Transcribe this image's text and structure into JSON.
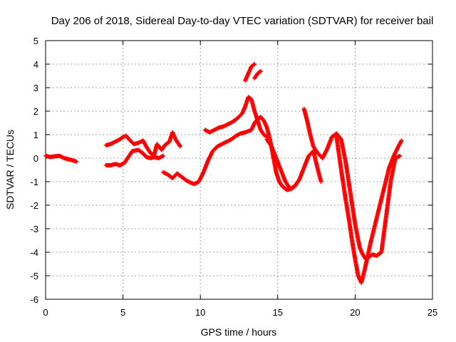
{
  "chart_data": {
    "type": "scatter",
    "title": "Day 206 of 2018, Sidereal Day-to-day VTEC variation (SDTVAR) for receiver bail",
    "xlabel": "GPS time / hours",
    "ylabel": "SDTVAR / TECUs",
    "xlim": [
      0,
      25
    ],
    "ylim": [
      -6,
      5
    ],
    "xticks": [
      0,
      5,
      10,
      15,
      20,
      25
    ],
    "yticks": [
      -6,
      -5,
      -4,
      -3,
      -2,
      -1,
      0,
      1,
      2,
      3,
      4,
      5
    ],
    "grid": true,
    "marker": "plus",
    "color": "#ff0000",
    "series": [
      {
        "x": [
          0.0,
          0.3,
          0.6,
          0.9,
          1.2,
          1.5,
          1.8,
          2.0
        ],
        "y": [
          0.1,
          0.05,
          0.08,
          0.1,
          0.0,
          -0.05,
          -0.1,
          -0.15
        ]
      },
      {
        "x": [
          3.9,
          4.2,
          4.5,
          4.8,
          5.0,
          5.2,
          5.4,
          5.7,
          6.0,
          6.3,
          6.5,
          6.8,
          7.0,
          7.2,
          7.5,
          7.7,
          8.0,
          8.2,
          8.4,
          8.7
        ],
        "y": [
          0.55,
          0.6,
          0.7,
          0.8,
          0.9,
          0.95,
          0.8,
          0.6,
          0.65,
          0.75,
          0.5,
          0.2,
          0.1,
          0.6,
          0.35,
          0.55,
          0.7,
          1.1,
          0.8,
          0.5
        ]
      },
      {
        "x": [
          3.9,
          4.2,
          4.5,
          4.8,
          5.1,
          5.3,
          5.6,
          6.0,
          6.3,
          6.5,
          6.8,
          7.0,
          7.3,
          7.6
        ],
        "y": [
          -0.3,
          -0.3,
          -0.25,
          -0.3,
          -0.2,
          0.0,
          0.3,
          0.35,
          0.2,
          0.05,
          0.0,
          0.05,
          0.0,
          0.1
        ]
      },
      {
        "x": [
          7.6,
          7.9,
          8.2,
          8.5,
          8.8,
          9.1,
          9.4,
          9.6,
          9.9
        ],
        "y": [
          -0.6,
          -0.7,
          -0.85,
          -0.65,
          -0.8,
          -0.95,
          -1.05,
          -1.1,
          -1.0
        ]
      },
      {
        "x": [
          9.9,
          10.2,
          10.5,
          10.8,
          11.1,
          11.4,
          11.7,
          12.0,
          12.3,
          12.6,
          12.9,
          13.1,
          13.3,
          13.5,
          13.7,
          13.9,
          14.1,
          14.3,
          14.5,
          14.7,
          14.9,
          15.1,
          15.3,
          15.6,
          15.9,
          16.2
        ],
        "y": [
          -1.0,
          -0.6,
          -0.1,
          0.3,
          0.5,
          0.6,
          0.7,
          0.8,
          0.95,
          1.05,
          1.1,
          1.15,
          1.2,
          1.5,
          1.65,
          1.75,
          1.6,
          1.3,
          0.8,
          0.1,
          -0.6,
          -1.0,
          -1.2,
          -1.35,
          -1.3,
          -1.1
        ]
      },
      {
        "x": [
          10.3,
          10.6,
          10.9,
          11.2,
          11.5,
          11.8,
          12.1,
          12.4,
          12.7,
          12.9,
          13.1,
          13.3,
          13.5,
          13.7,
          13.9,
          14.1,
          14.3
        ],
        "y": [
          1.2,
          1.1,
          1.2,
          1.3,
          1.35,
          1.45,
          1.55,
          1.7,
          1.9,
          2.2,
          2.6,
          2.5,
          2.0,
          1.6,
          1.2,
          1.0,
          0.9
        ]
      },
      {
        "x": [
          12.9,
          13.1,
          13.3,
          13.5
        ],
        "y": [
          3.3,
          3.6,
          3.9,
          4.0
        ]
      },
      {
        "x": [
          13.5,
          13.7,
          13.9
        ],
        "y": [
          3.4,
          3.6,
          3.7
        ]
      },
      {
        "x": [
          14.3,
          14.6,
          14.9,
          15.2,
          15.5,
          15.8,
          16.1,
          16.4,
          16.7,
          17.0,
          17.3,
          17.6,
          17.8
        ],
        "y": [
          0.8,
          0.5,
          0.0,
          -0.5,
          -1.0,
          -1.3,
          -1.2,
          -0.9,
          -0.4,
          0.1,
          0.3,
          -0.5,
          -1.0
        ]
      },
      {
        "x": [
          16.7,
          16.9,
          17.1,
          17.3,
          17.6,
          17.9,
          18.2,
          18.5,
          18.8,
          19.1,
          19.4,
          19.7,
          20.0,
          20.3,
          20.5,
          20.7,
          20.9,
          21.1,
          21.4,
          21.7,
          22.0,
          22.3,
          22.6,
          22.9
        ],
        "y": [
          2.1,
          1.6,
          1.0,
          0.5,
          0.2,
          0.0,
          0.4,
          0.9,
          1.05,
          0.8,
          -0.2,
          -1.5,
          -2.8,
          -3.8,
          -4.1,
          -4.3,
          -4.2,
          -4.1,
          -4.15,
          -4.0,
          -2.5,
          -1.0,
          0.0,
          0.1
        ]
      },
      {
        "x": [
          18.8,
          19.1,
          19.4,
          19.6,
          19.8,
          20.0,
          20.2,
          20.4,
          20.6,
          20.8,
          21.0,
          21.3,
          21.6,
          21.9,
          22.2,
          22.5,
          22.8,
          23.0
        ],
        "y": [
          0.9,
          -0.5,
          -1.8,
          -2.6,
          -3.5,
          -4.3,
          -5.0,
          -5.3,
          -4.8,
          -4.2,
          -3.6,
          -2.8,
          -2.0,
          -1.2,
          -0.4,
          0.1,
          0.5,
          0.75
        ]
      }
    ]
  }
}
